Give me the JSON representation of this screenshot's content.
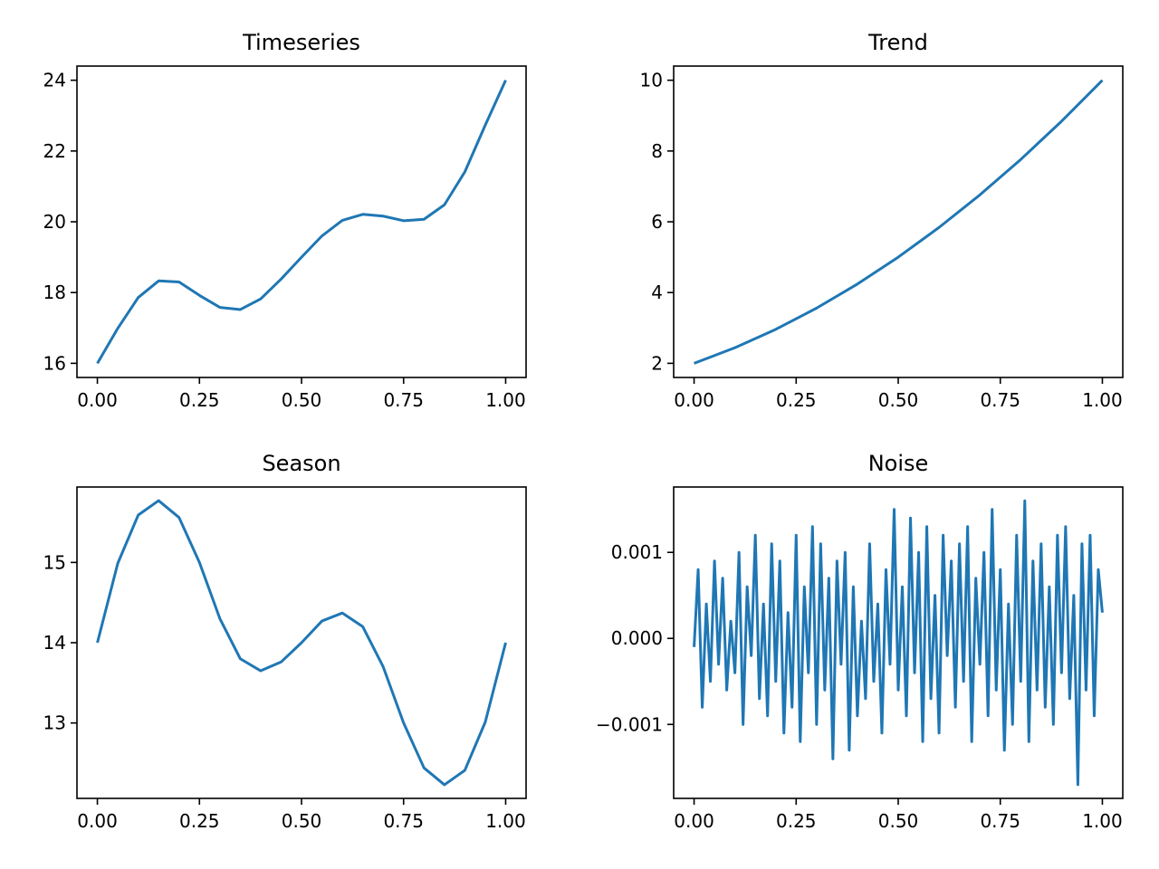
{
  "figure": {
    "line_color": "#1f77b4"
  },
  "chart_data": [
    {
      "type": "line",
      "title": "Timeseries",
      "xlabel": "",
      "ylabel": "",
      "xlim": [
        -0.05,
        1.05
      ],
      "ylim": [
        15.6,
        24.4
      ],
      "xticks": [
        0,
        0.25,
        0.5,
        0.75,
        1
      ],
      "xtick_labels": [
        "0.00",
        "0.25",
        "0.50",
        "0.75",
        "1.00"
      ],
      "yticks": [
        16,
        18,
        20,
        22,
        24
      ],
      "ytick_labels": [
        "16",
        "18",
        "20",
        "22",
        "24"
      ],
      "grid": false,
      "series": [
        {
          "x": [
            0,
            0.05,
            0.1,
            0.15,
            0.2,
            0.25,
            0.3,
            0.35,
            0.4,
            0.45,
            0.5,
            0.55,
            0.6,
            0.65,
            0.7,
            0.75,
            0.8,
            0.85,
            0.9,
            0.95,
            1
          ],
          "values": [
            16.0,
            16.99,
            17.86,
            18.33,
            18.3,
            17.92,
            17.58,
            17.52,
            17.82,
            18.38,
            19.0,
            19.6,
            20.04,
            20.21,
            20.16,
            20.03,
            20.07,
            20.48,
            21.41,
            22.73,
            24.0
          ]
        }
      ]
    },
    {
      "type": "line",
      "title": "Trend",
      "xlabel": "",
      "ylabel": "",
      "xlim": [
        -0.05,
        1.05
      ],
      "ylim": [
        1.6,
        10.4
      ],
      "xticks": [
        0,
        0.25,
        0.5,
        0.75,
        1
      ],
      "xtick_labels": [
        "0.00",
        "0.25",
        "0.50",
        "0.75",
        "1.00"
      ],
      "yticks": [
        2,
        4,
        6,
        8,
        10
      ],
      "ytick_labels": [
        "2",
        "4",
        "6",
        "8",
        "10"
      ],
      "grid": false,
      "series": [
        {
          "x": [
            0,
            0.1,
            0.2,
            0.3,
            0.4,
            0.5,
            0.6,
            0.7,
            0.8,
            0.9,
            1
          ],
          "values": [
            2.0,
            2.44,
            2.96,
            3.56,
            4.24,
            5.0,
            5.84,
            6.76,
            7.76,
            8.84,
            10.0
          ]
        }
      ]
    },
    {
      "type": "line",
      "title": "Season",
      "xlabel": "",
      "ylabel": "",
      "xlim": [
        -0.05,
        1.05
      ],
      "ylim": [
        12.06,
        15.94
      ],
      "xticks": [
        0,
        0.25,
        0.5,
        0.75,
        1
      ],
      "xtick_labels": [
        "0.00",
        "0.25",
        "0.50",
        "0.75",
        "1.00"
      ],
      "yticks": [
        13,
        14,
        15
      ],
      "ytick_labels": [
        "13",
        "14",
        "15"
      ],
      "grid": false,
      "series": [
        {
          "x": [
            0,
            0.05,
            0.1,
            0.15,
            0.2,
            0.25,
            0.3,
            0.35,
            0.4,
            0.45,
            0.5,
            0.55,
            0.6,
            0.65,
            0.7,
            0.75,
            0.8,
            0.85,
            0.9,
            0.95,
            1
          ],
          "values": [
            14.0,
            14.99,
            15.59,
            15.77,
            15.56,
            15.0,
            14.3,
            13.8,
            13.65,
            13.76,
            14.0,
            14.27,
            14.37,
            14.2,
            13.7,
            13.0,
            12.44,
            12.23,
            12.41,
            13.01,
            14.0
          ]
        }
      ]
    },
    {
      "type": "line",
      "title": "Noise",
      "xlabel": "",
      "ylabel": "",
      "xlim": [
        -0.05,
        1.05
      ],
      "ylim": [
        -0.00186,
        0.00176
      ],
      "xticks": [
        0,
        0.25,
        0.5,
        0.75,
        1
      ],
      "xtick_labels": [
        "0.00",
        "0.25",
        "0.50",
        "0.75",
        "1.00"
      ],
      "yticks": [
        -0.001,
        0,
        0.001
      ],
      "ytick_labels": [
        "−0.001",
        "0.000",
        "0.001"
      ],
      "grid": false,
      "series": [
        {
          "x": [
            0.0,
            0.01,
            0.02,
            0.03,
            0.04,
            0.05,
            0.06,
            0.07,
            0.08,
            0.09,
            0.1,
            0.11,
            0.12,
            0.13,
            0.14,
            0.15,
            0.16,
            0.17,
            0.18,
            0.19,
            0.2,
            0.21,
            0.22,
            0.23,
            0.24,
            0.25,
            0.26,
            0.27,
            0.28,
            0.29,
            0.3,
            0.31,
            0.32,
            0.33,
            0.34,
            0.35,
            0.36,
            0.37,
            0.38,
            0.39,
            0.4,
            0.41,
            0.42,
            0.43,
            0.44,
            0.45,
            0.46,
            0.47,
            0.48,
            0.49,
            0.5,
            0.51,
            0.52,
            0.53,
            0.54,
            0.55,
            0.56,
            0.57,
            0.58,
            0.59,
            0.6,
            0.61,
            0.62,
            0.63,
            0.64,
            0.65,
            0.66,
            0.67,
            0.68,
            0.69,
            0.7,
            0.71,
            0.72,
            0.73,
            0.74,
            0.75,
            0.76,
            0.77,
            0.78,
            0.79,
            0.8,
            0.81,
            0.82,
            0.83,
            0.84,
            0.85,
            0.86,
            0.87,
            0.88,
            0.89,
            0.9,
            0.91,
            0.92,
            0.93,
            0.94,
            0.95,
            0.96,
            0.97,
            0.98,
            0.99,
            1.0
          ],
          "values": [
            -0.0001,
            0.0008,
            -0.0008,
            0.0004,
            -0.0005,
            0.0009,
            -0.0003,
            0.0007,
            -0.0006,
            0.0002,
            -0.0004,
            0.001,
            -0.001,
            0.0006,
            -0.0002,
            0.0012,
            -0.0007,
            0.0004,
            -0.0009,
            0.0011,
            -0.0005,
            0.0009,
            -0.0011,
            0.0003,
            -0.0008,
            0.0012,
            -0.0012,
            0.0006,
            -0.0004,
            0.0013,
            -0.001,
            0.0011,
            -0.0006,
            0.0007,
            -0.0014,
            0.0009,
            -0.0003,
            0.001,
            -0.0013,
            0.0006,
            -0.0009,
            0.0002,
            -0.0007,
            0.0011,
            -0.0005,
            0.0004,
            -0.0011,
            0.0008,
            -0.0003,
            0.0015,
            -0.0006,
            0.0006,
            -0.0009,
            0.0014,
            -0.0004,
            0.001,
            -0.0012,
            0.0013,
            -0.0007,
            0.0005,
            -0.0011,
            0.0012,
            -0.0002,
            0.0009,
            -0.0008,
            0.0011,
            -0.0005,
            0.0013,
            -0.0012,
            0.0007,
            -0.0003,
            0.001,
            -0.0009,
            0.0015,
            -0.0006,
            0.0008,
            -0.0013,
            0.0004,
            -0.001,
            0.0012,
            -0.0005,
            0.0016,
            -0.0012,
            0.0009,
            -0.0006,
            0.0011,
            -0.0008,
            0.0006,
            -0.001,
            0.0012,
            -0.0004,
            0.0013,
            -0.0007,
            0.0005,
            -0.0017,
            0.0011,
            -0.0006,
            0.0012,
            -0.0009,
            0.0008,
            0.0003
          ]
        }
      ]
    }
  ]
}
